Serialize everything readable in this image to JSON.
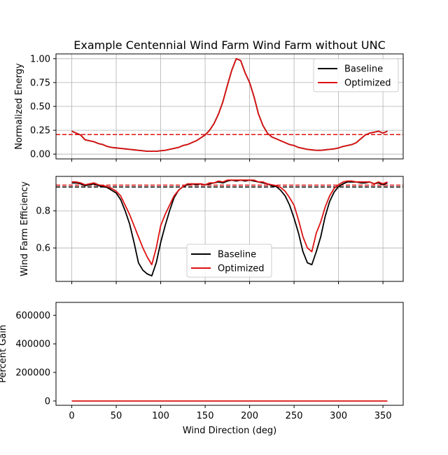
{
  "chart_data": [
    {
      "type": "line",
      "title": "Example Centennial Wind Farm Wind Farm without UNC",
      "xlabel": "",
      "ylabel": "Normalized Energy",
      "xlim": [
        -17.75,
        372.75
      ],
      "ylim": [
        -0.05,
        1.05
      ],
      "yticks": [
        0.0,
        0.25,
        0.5,
        0.75,
        1.0
      ],
      "ytick_labels": [
        "0.00",
        "0.25",
        "0.50",
        "0.75",
        "1.00"
      ],
      "grid": true,
      "legend": "top-right",
      "x": [
        0,
        5,
        10,
        15,
        20,
        25,
        30,
        35,
        40,
        45,
        50,
        55,
        60,
        65,
        70,
        75,
        80,
        85,
        90,
        95,
        100,
        105,
        110,
        115,
        120,
        125,
        130,
        135,
        140,
        145,
        150,
        155,
        160,
        165,
        170,
        175,
        180,
        185,
        190,
        195,
        200,
        205,
        210,
        215,
        220,
        225,
        230,
        235,
        240,
        245,
        250,
        255,
        260,
        265,
        270,
        275,
        280,
        285,
        290,
        295,
        300,
        305,
        310,
        315,
        320,
        325,
        330,
        335,
        340,
        345,
        350,
        355
      ],
      "series": [
        {
          "name": "Baseline",
          "color": "#000000",
          "values": [
            0.24,
            0.22,
            0.2,
            0.15,
            0.14,
            0.13,
            0.11,
            0.1,
            0.08,
            0.07,
            0.065,
            0.06,
            0.055,
            0.05,
            0.045,
            0.04,
            0.035,
            0.03,
            0.03,
            0.03,
            0.035,
            0.04,
            0.05,
            0.06,
            0.07,
            0.09,
            0.1,
            0.12,
            0.14,
            0.17,
            0.2,
            0.25,
            0.32,
            0.42,
            0.55,
            0.72,
            0.88,
            1.0,
            0.98,
            0.85,
            0.75,
            0.6,
            0.42,
            0.3,
            0.22,
            0.18,
            0.16,
            0.14,
            0.12,
            0.1,
            0.09,
            0.07,
            0.06,
            0.05,
            0.045,
            0.04,
            0.04,
            0.045,
            0.05,
            0.055,
            0.065,
            0.08,
            0.09,
            0.1,
            0.12,
            0.16,
            0.2,
            0.22,
            0.23,
            0.24,
            0.22,
            0.24
          ]
        },
        {
          "name": "Optimized",
          "color": "#dd1111",
          "values": [
            0.24,
            0.22,
            0.2,
            0.15,
            0.14,
            0.13,
            0.11,
            0.1,
            0.08,
            0.07,
            0.065,
            0.06,
            0.055,
            0.05,
            0.045,
            0.04,
            0.035,
            0.03,
            0.03,
            0.03,
            0.035,
            0.04,
            0.05,
            0.06,
            0.07,
            0.09,
            0.1,
            0.12,
            0.14,
            0.17,
            0.2,
            0.25,
            0.32,
            0.42,
            0.55,
            0.72,
            0.88,
            1.0,
            0.98,
            0.85,
            0.75,
            0.6,
            0.42,
            0.3,
            0.22,
            0.18,
            0.16,
            0.14,
            0.12,
            0.1,
            0.09,
            0.07,
            0.06,
            0.05,
            0.045,
            0.04,
            0.04,
            0.045,
            0.05,
            0.055,
            0.065,
            0.08,
            0.09,
            0.1,
            0.12,
            0.16,
            0.2,
            0.22,
            0.23,
            0.24,
            0.22,
            0.24
          ]
        }
      ],
      "hlines": [
        {
          "y": 0.205,
          "color": "#000000"
        },
        {
          "y": 0.205,
          "color": "#dd1111"
        }
      ]
    },
    {
      "type": "line",
      "title": "",
      "xlabel": "",
      "ylabel": "Wind Farm Efficiency",
      "xlim": [
        -17.75,
        372.75
      ],
      "ylim": [
        0.42,
        0.985
      ],
      "yticks": [
        0.6,
        0.8
      ],
      "ytick_labels": [
        "0.6",
        "0.8"
      ],
      "grid": true,
      "legend": "bottom-center",
      "x": [
        0,
        5,
        10,
        15,
        20,
        25,
        30,
        35,
        40,
        45,
        50,
        55,
        60,
        65,
        70,
        75,
        80,
        85,
        90,
        95,
        100,
        105,
        110,
        115,
        120,
        125,
        130,
        135,
        140,
        145,
        150,
        155,
        160,
        165,
        170,
        175,
        180,
        185,
        190,
        195,
        200,
        205,
        210,
        215,
        220,
        225,
        230,
        235,
        240,
        245,
        250,
        255,
        260,
        265,
        270,
        275,
        280,
        285,
        290,
        295,
        300,
        305,
        310,
        315,
        320,
        325,
        330,
        335,
        340,
        345,
        350,
        355
      ],
      "series": [
        {
          "name": "Baseline",
          "color": "#000000",
          "values": [
            0.95,
            0.95,
            0.945,
            0.935,
            0.94,
            0.945,
            0.935,
            0.93,
            0.925,
            0.91,
            0.895,
            0.86,
            0.8,
            0.73,
            0.63,
            0.52,
            0.48,
            0.46,
            0.45,
            0.52,
            0.63,
            0.72,
            0.8,
            0.87,
            0.91,
            0.93,
            0.94,
            0.945,
            0.94,
            0.945,
            0.94,
            0.945,
            0.95,
            0.955,
            0.95,
            0.96,
            0.965,
            0.96,
            0.965,
            0.96,
            0.965,
            0.96,
            0.955,
            0.95,
            0.945,
            0.935,
            0.93,
            0.91,
            0.88,
            0.83,
            0.76,
            0.68,
            0.58,
            0.52,
            0.51,
            0.58,
            0.66,
            0.77,
            0.85,
            0.9,
            0.93,
            0.945,
            0.955,
            0.955,
            0.955,
            0.95,
            0.95,
            0.955,
            0.945,
            0.95,
            0.94,
            0.95
          ]
        },
        {
          "name": "Optimized",
          "color": "#dd1111",
          "values": [
            0.955,
            0.955,
            0.95,
            0.94,
            0.945,
            0.95,
            0.94,
            0.935,
            0.93,
            0.92,
            0.905,
            0.88,
            0.83,
            0.78,
            0.72,
            0.66,
            0.6,
            0.55,
            0.51,
            0.6,
            0.72,
            0.78,
            0.83,
            0.88,
            0.91,
            0.93,
            0.945,
            0.945,
            0.945,
            0.945,
            0.94,
            0.95,
            0.95,
            0.96,
            0.955,
            0.965,
            0.965,
            0.965,
            0.965,
            0.965,
            0.965,
            0.965,
            0.955,
            0.955,
            0.945,
            0.94,
            0.935,
            0.925,
            0.905,
            0.87,
            0.83,
            0.75,
            0.66,
            0.6,
            0.58,
            0.68,
            0.74,
            0.82,
            0.88,
            0.92,
            0.94,
            0.955,
            0.96,
            0.96,
            0.955,
            0.955,
            0.955,
            0.955,
            0.945,
            0.955,
            0.945,
            0.955
          ]
        }
      ],
      "hlines": [
        {
          "y": 0.928,
          "color": "#000000"
        },
        {
          "y": 0.938,
          "color": "#dd1111"
        }
      ]
    },
    {
      "type": "line",
      "title": "",
      "xlabel": "Wind Direction (deg)",
      "ylabel": "Percent Gain",
      "xlim": [
        -17.75,
        372.75
      ],
      "ylim": [
        -30000,
        690000
      ],
      "yticks": [
        0,
        200000,
        400000,
        600000
      ],
      "ytick_labels": [
        "0",
        "200000",
        "400000",
        "600000"
      ],
      "xticks": [
        0,
        50,
        100,
        150,
        200,
        250,
        300,
        350
      ],
      "xtick_labels": [
        "0",
        "50",
        "100",
        "150",
        "200",
        "250",
        "300",
        "350"
      ],
      "grid": false,
      "legend": "none",
      "x": [
        0,
        355
      ],
      "series": [
        {
          "color": "#dd1111",
          "values": [
            0,
            0
          ]
        }
      ],
      "hlines": []
    }
  ]
}
